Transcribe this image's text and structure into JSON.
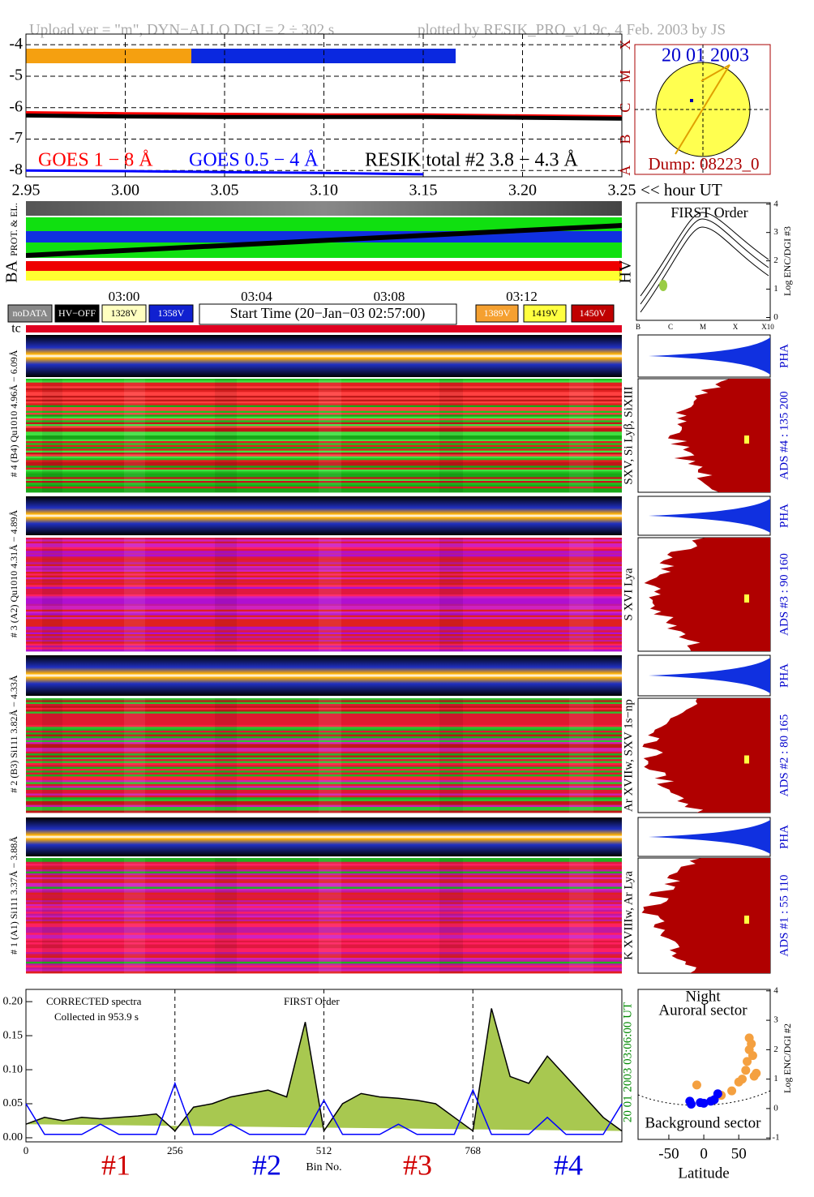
{
  "header": {
    "upload": "Upload ver = \"m\", DYN−ALLO DGI =   2 ÷ 302 s",
    "plotted": "plotted by RESIK_PRO_v1.9c, 4 Feb. 2003 by JS"
  },
  "chart_data": [
    {
      "type": "line",
      "x": [
        2.95,
        3.0,
        3.05,
        3.1,
        3.15,
        3.2,
        3.25
      ],
      "xlim": [
        2.95,
        3.25
      ],
      "xticks": [
        2.95,
        {
          "value": 3.0,
          "label": "3.00"
        },
        3.05,
        {
          "value": 3.1,
          "label": "3.10"
        },
        3.15,
        {
          "value": 3.2,
          "label": "3.20"
        },
        3.25
      ],
      "x_label": "<< hour UT",
      "ylim": [
        -8.2,
        -3.66
      ],
      "yticks": [
        -8,
        -7,
        -6,
        -5,
        -4
      ],
      "y2lim": [
        -8.2,
        -3.66
      ],
      "y2ticks": [
        {
          "value": -8,
          "label": "A"
        },
        {
          "value": -7,
          "label": "B"
        },
        {
          "value": -6,
          "label": "C"
        },
        {
          "value": -5,
          "label": "M"
        },
        {
          "value": -4,
          "label": "X"
        }
      ],
      "grid": true,
      "series": [
        {
          "name": "GOES 1 − 8 Å",
          "color": "#ff0000",
          "values": [
            -6.15,
            -6.18,
            -6.2,
            -6.22,
            -6.22,
            -6.25,
            -6.28
          ]
        },
        {
          "name": "GOES 0.5 − 4 Å",
          "color": "#0000ff",
          "values": [
            -8.0,
            -8.02,
            -8.05,
            -8.08,
            -8.12,
            null,
            null
          ]
        },
        {
          "name": "RESIK total #2  3.8 − 4.3 Å",
          "color": "#000000",
          "values": [
            -6.25,
            -6.28,
            -6.3,
            -6.3,
            -6.3,
            -6.32,
            -6.35
          ]
        }
      ]
    },
    {
      "type": "inset",
      "title": "FIRST Order",
      "y_label": "Log ENC/DGI #3",
      "ylim": [
        -0.1,
        4.05
      ],
      "yticks": [
        0,
        1,
        2,
        3,
        4
      ],
      "categories": [
        "B",
        "C",
        "M",
        "X",
        "X10"
      ]
    },
    {
      "type": "line",
      "x": [
        0,
        32,
        64,
        96,
        128,
        160,
        192,
        224,
        256,
        288,
        320,
        352,
        384,
        416,
        448,
        480,
        512,
        544,
        576,
        608,
        640,
        672,
        704,
        736,
        768,
        800,
        832,
        864,
        896,
        928,
        960,
        992,
        1024
      ],
      "xlim": [
        0,
        1024
      ],
      "xticks": [
        0,
        256,
        512,
        768
      ],
      "x_label": "Bin No.",
      "ylim": [
        -0.006,
        0.218
      ],
      "yticks": [
        {
          "value": 0,
          "label": "0.00"
        },
        {
          "value": 0.05,
          "label": "0.05"
        },
        {
          "value": 0.1,
          "label": "0.10"
        },
        {
          "value": 0.15,
          "label": "0.15"
        },
        {
          "value": 0.2,
          "label": "0.20"
        }
      ],
      "grid": true,
      "annotations": [
        "CORRECTED spectra",
        "Collected in   953.9 s",
        "FIRST Order"
      ],
      "sections": [
        "#1",
        "#2",
        "#3",
        "#4"
      ],
      "date_label": "20 01 2003     03:06:00 UT",
      "series": [
        {
          "color": "#000000",
          "fill": "#a8c850",
          "values": [
            0.02,
            0.03,
            0.025,
            0.03,
            0.028,
            0.03,
            0.032,
            0.035,
            0.01,
            0.045,
            0.05,
            0.06,
            0.065,
            0.07,
            0.06,
            0.17,
            0.01,
            0.05,
            0.065,
            0.06,
            0.058,
            0.055,
            0.05,
            0.03,
            0.01,
            0.19,
            0.09,
            0.08,
            0.12,
            0.09,
            0.06,
            0.03,
            0.01
          ]
        },
        {
          "color": "#0000ff",
          "values": [
            0.05,
            0.005,
            0.005,
            0.005,
            0.02,
            0.005,
            0.005,
            0.005,
            0.08,
            0.005,
            0.005,
            0.02,
            0.005,
            0.005,
            0.005,
            0.005,
            0.055,
            0.005,
            0.005,
            0.005,
            0.02,
            0.005,
            0.005,
            0.005,
            0.07,
            0.005,
            0.005,
            0.005,
            0.03,
            0.005,
            0.005,
            0.005,
            0.05
          ]
        }
      ]
    },
    {
      "type": "scatter",
      "title": "Night",
      "annotations": [
        "Auroral sector",
        "Background sector"
      ],
      "x_label": "Latitude",
      "y_label": "Log ENC/DGI #2",
      "xlim": [
        -94,
        95
      ],
      "xticks": [
        -50,
        0,
        50
      ],
      "ylim": [
        -1.05,
        4.05
      ],
      "yticks": [
        -1,
        0,
        1,
        2,
        3,
        4
      ],
      "series": [
        {
          "color": "#f4a040",
          "x": [
            -10,
            25,
            40,
            50,
            55,
            60,
            62,
            65,
            65,
            68,
            70,
            72,
            75
          ],
          "values": [
            0.8,
            0.45,
            0.6,
            0.9,
            1.0,
            1.3,
            1.6,
            2.0,
            2.4,
            2.2,
            1.8,
            1.1,
            1.2
          ]
        },
        {
          "color": "#0000ff",
          "x": [
            -20,
            -18,
            -5,
            0,
            10,
            15,
            20
          ],
          "values": [
            0.25,
            0.15,
            0.2,
            0.18,
            0.25,
            0.3,
            0.5
          ]
        }
      ]
    }
  ],
  "sun": {
    "date": "20 01 2003",
    "dump": "Dump: 08223_0"
  },
  "status": {
    "times": [
      "03:00",
      "03:04",
      "03:08",
      "03:12"
    ],
    "left_keys": [
      "noDATA",
      "HV−OFF",
      "1328V",
      "1358V"
    ],
    "start": "Start Time (20−Jan−03 02:57:00)",
    "right_keys": [
      "1389V",
      "1419V",
      "1450V"
    ],
    "tc": "tc",
    "ba": "BA",
    "prot": "PROT. & EL.",
    "hv": "HV"
  },
  "channels": [
    {
      "label": "# 4 (B4) Qu1010 4.96Å − 6.09Å",
      "lines": "SXV, Si Lyβ, SiXIII",
      "ads": "ADS #4 :   135 200",
      "pha": "PHA"
    },
    {
      "label": "# 3 (A2) Qu1010  4.31Å − 4.89Å",
      "lines": "S XVI Lya",
      "ads": "ADS #3 :   90 160",
      "pha": "PHA"
    },
    {
      "label": "# 2 (B3) Si111  3.82Å − 4.33Å",
      "lines": "Ar XVIIw, SXV 1s−np",
      "ads": "ADS #2 :   80 165",
      "pha": "PHA"
    },
    {
      "label": "# 1 (A1) Si111  3.37Å − 3.88Å",
      "lines": "K XVIIIw, Ar Lya",
      "ads": "ADS #1 :   55 110",
      "pha": "PHA"
    }
  ]
}
